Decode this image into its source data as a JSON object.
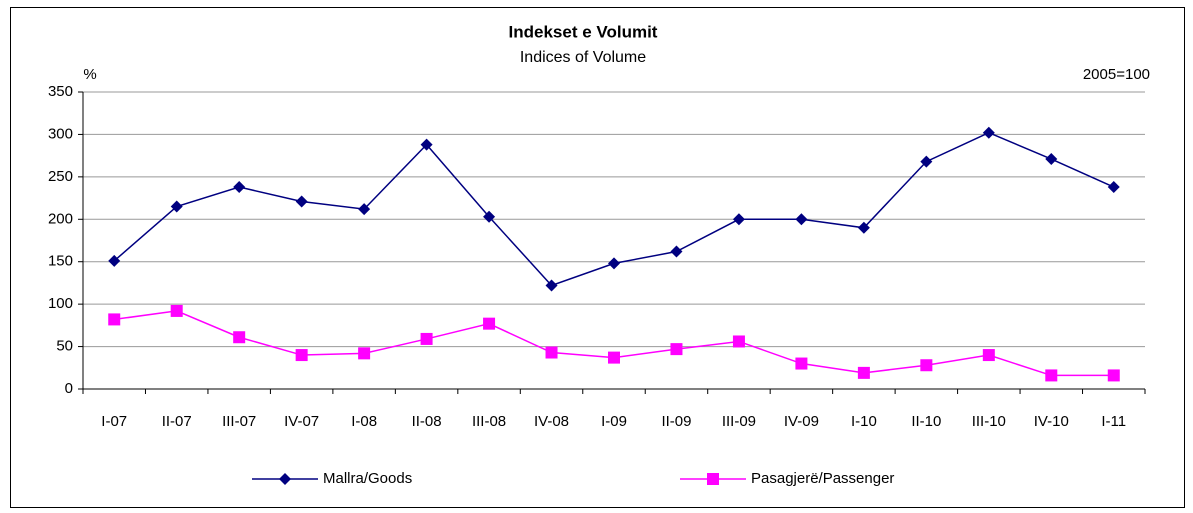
{
  "chart_data": {
    "type": "line",
    "title": "Indekset e Volumit",
    "subtitle": "Indices of Volume",
    "y_label": "%",
    "note": "2005=100",
    "categories": [
      "I-07",
      "II-07",
      "III-07",
      "IV-07",
      "I-08",
      "II-08",
      "III-08",
      "IV-08",
      "I-09",
      "II-09",
      "III-09",
      "IV-09",
      "I-10",
      "II-10",
      "III-10",
      "IV-10",
      "I-11"
    ],
    "series": [
      {
        "name": "Mallra/Goods",
        "color": "#000080",
        "marker": "diamond",
        "values": [
          151,
          215,
          238,
          221,
          212,
          288,
          203,
          122,
          148,
          162,
          200,
          200,
          190,
          268,
          302,
          271,
          238
        ]
      },
      {
        "name": "Pasagjerë/Passenger",
        "color": "#ff00ff",
        "marker": "square",
        "values": [
          82,
          92,
          61,
          40,
          42,
          59,
          77,
          43,
          37,
          47,
          56,
          30,
          19,
          28,
          40,
          16,
          16
        ]
      }
    ],
    "ylim": [
      0,
      350
    ],
    "yticks": [
      0,
      50,
      100,
      150,
      200,
      250,
      300,
      350
    ],
    "grid": true,
    "legend": "bottom"
  }
}
